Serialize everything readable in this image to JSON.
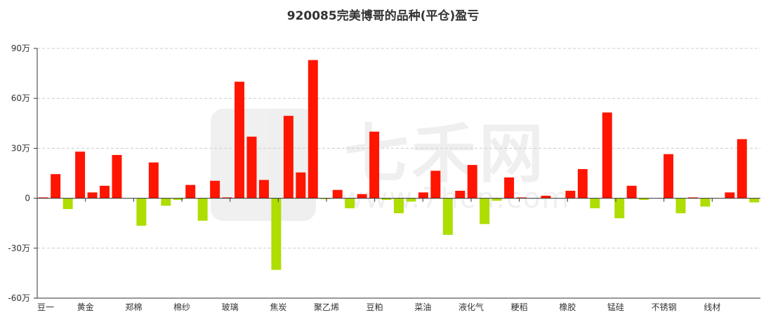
{
  "title": "920085完美博哥的品种(平仓)盈亏",
  "watermark": {
    "text": "七禾网",
    "url": "www.7hcn.com"
  },
  "colors": {
    "positive": "#ff1500",
    "negative": "#aedd00",
    "axis": "#333333",
    "grid": "#cccccc"
  },
  "chart_data": {
    "type": "bar",
    "title": "920085完美博哥的品种(平仓)盈亏",
    "ylim": [
      -60,
      90
    ],
    "y_ticks": [
      -60,
      -30,
      0,
      30,
      60,
      90
    ],
    "y_tick_labels": [
      "-60万",
      "-30万",
      "0",
      "30万",
      "60万",
      "90万"
    ],
    "ylabel": "",
    "xlabel": "",
    "grid": true,
    "x_tick_labels": [
      "豆一",
      "黄金",
      "郑棉",
      "棉纱",
      "玻璃",
      "焦炭",
      "聚乙烯",
      "豆粕",
      "菜油",
      "液化气",
      "粳稻",
      "橡胶",
      "锰硅",
      "不锈钢",
      "线材"
    ],
    "values": [
      0.5,
      14.5,
      -6.5,
      28,
      3.5,
      7.5,
      26,
      0,
      -16.5,
      21.5,
      -4.5,
      -1,
      8,
      -13.5,
      10.5,
      0.5,
      70,
      37,
      11,
      -43,
      49.5,
      15.5,
      83,
      -0.5,
      5,
      -6,
      2.5,
      40,
      -1,
      -9,
      -2,
      3.5,
      16.5,
      -22,
      4.5,
      20,
      -15.5,
      -1.5,
      12.5,
      0.5,
      0,
      1.5,
      0,
      4.5,
      17.5,
      -6,
      51.5,
      -12,
      7.5,
      -1,
      0,
      26.5,
      -9,
      0.5,
      -5,
      0,
      3.5,
      35.5,
      -2.5
    ]
  }
}
